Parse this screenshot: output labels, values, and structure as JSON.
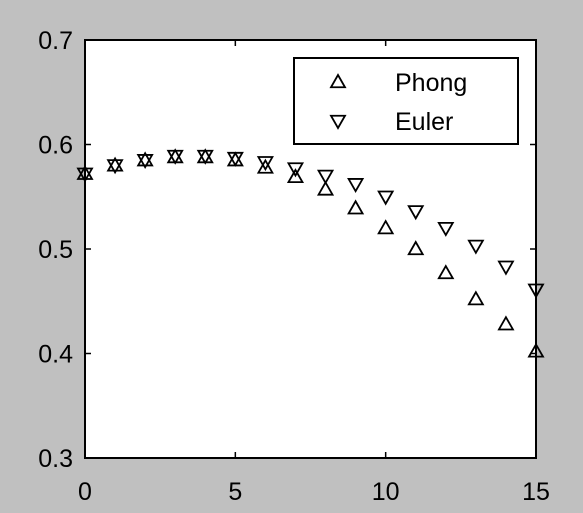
{
  "chart_data": {
    "type": "scatter",
    "title": "",
    "xlabel": "",
    "ylabel": "",
    "xlim": [
      0,
      15
    ],
    "ylim": [
      0.3,
      0.7
    ],
    "xticks": [
      0,
      5,
      10,
      15
    ],
    "yticks": [
      0.3,
      0.4,
      0.5,
      0.6,
      0.7
    ],
    "xtick_labels": [
      "0",
      "5",
      "10",
      "15"
    ],
    "ytick_labels": [
      "0.3",
      "0.4",
      "0.5",
      "0.6",
      "0.7"
    ],
    "grid": false,
    "legend_placement": "top-right",
    "series": [
      {
        "name": "Phong",
        "marker": "triangle-up",
        "x": [
          0,
          1,
          2,
          3,
          4,
          5,
          6,
          7,
          8,
          9,
          10,
          11,
          12,
          13,
          14,
          15
        ],
        "values": [
          0.572,
          0.58,
          0.585,
          0.588,
          0.588,
          0.585,
          0.578,
          0.569,
          0.557,
          0.539,
          0.52,
          0.5,
          0.477,
          0.452,
          0.428,
          0.402
        ]
      },
      {
        "name": "Euler",
        "marker": "triangle-down",
        "x": [
          0,
          1,
          2,
          3,
          4,
          5,
          6,
          7,
          8,
          9,
          10,
          11,
          12,
          13,
          14,
          15
        ],
        "values": [
          0.572,
          0.58,
          0.585,
          0.589,
          0.589,
          0.587,
          0.583,
          0.577,
          0.57,
          0.562,
          0.55,
          0.536,
          0.52,
          0.503,
          0.483,
          0.461
        ]
      }
    ]
  }
}
